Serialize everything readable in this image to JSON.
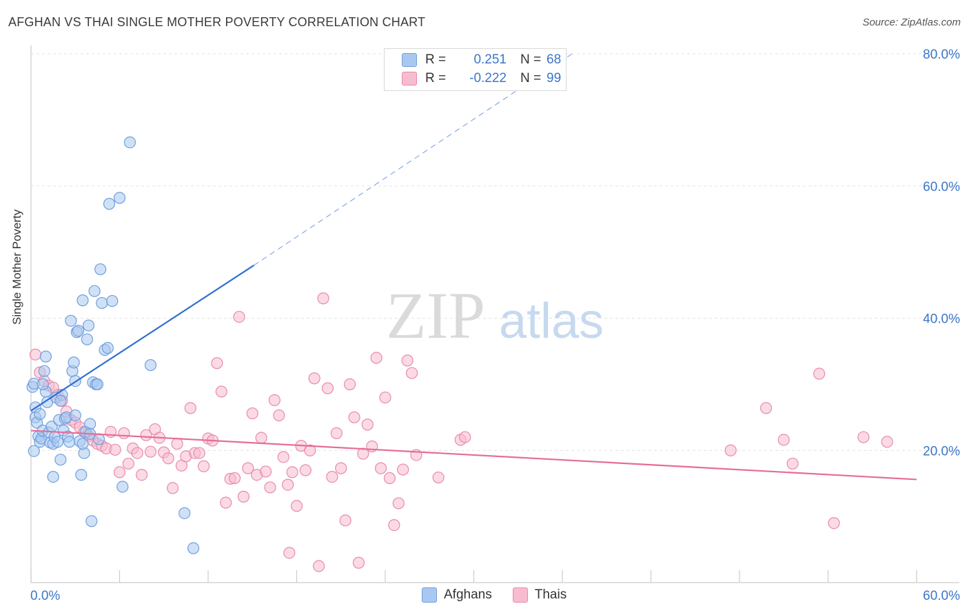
{
  "header": {
    "title": "AFGHAN VS THAI SINGLE MOTHER POVERTY CORRELATION CHART",
    "source": "Source: ZipAtlas.com"
  },
  "watermark": {
    "zip": "ZIP",
    "atlas": "atlas"
  },
  "legend": {
    "rows": [
      {
        "series": "Afghans",
        "r_label": "R =",
        "r_value": "0.251",
        "n_label": "N =",
        "n_value": "68",
        "color": "#a9c8f0",
        "border": "#6f9fdc"
      },
      {
        "series": "Thais",
        "r_label": "R =",
        "r_value": "-0.222",
        "n_label": "N =",
        "n_value": "99",
        "color": "#f7bcd0",
        "border": "#e88aab"
      }
    ],
    "bottom": [
      {
        "label": "Afghans",
        "color": "#a9c8f0",
        "border": "#6f9fdc"
      },
      {
        "label": "Thais",
        "color": "#f7bcd0",
        "border": "#e88aab"
      }
    ]
  },
  "chart_data": {
    "type": "scatter",
    "title": "AFGHAN VS THAI SINGLE MOTHER POVERTY CORRELATION CHART",
    "xlabel": "",
    "ylabel": "Single Mother Poverty",
    "xlim": [
      0,
      60
    ],
    "ylim": [
      0,
      80
    ],
    "x_tick_labels": [
      "0.0%",
      "60.0%"
    ],
    "y_tick_labels": [
      "20.0%",
      "40.0%",
      "60.0%",
      "80.0%"
    ],
    "y_ticks": [
      20,
      40,
      60,
      80
    ],
    "grid": true,
    "series": [
      {
        "name": "Afghans",
        "color": "#6f9fdc",
        "fill": "#a9c8f0",
        "points": [
          [
            0.1,
            29.6
          ],
          [
            0.2,
            30.1
          ],
          [
            0.3,
            26.5
          ],
          [
            0.3,
            25.0
          ],
          [
            0.4,
            24.2
          ],
          [
            0.5,
            22.1
          ],
          [
            0.6,
            21.3
          ],
          [
            0.7,
            21.8
          ],
          [
            0.8,
            23.0
          ],
          [
            0.9,
            32.0
          ],
          [
            1.0,
            34.2
          ],
          [
            1.0,
            28.9
          ],
          [
            1.1,
            27.3
          ],
          [
            1.2,
            22.7
          ],
          [
            1.3,
            21.2
          ],
          [
            1.4,
            23.6
          ],
          [
            1.5,
            21.0
          ],
          [
            1.6,
            22.0
          ],
          [
            1.7,
            28.0
          ],
          [
            1.8,
            21.3
          ],
          [
            1.9,
            24.6
          ],
          [
            2.0,
            18.6
          ],
          [
            2.1,
            28.4
          ],
          [
            2.2,
            23.0
          ],
          [
            2.3,
            24.8
          ],
          [
            2.4,
            25.0
          ],
          [
            2.5,
            22.1
          ],
          [
            2.6,
            21.3
          ],
          [
            2.7,
            39.6
          ],
          [
            2.8,
            32.0
          ],
          [
            2.9,
            33.3
          ],
          [
            3.0,
            30.5
          ],
          [
            3.1,
            37.9
          ],
          [
            3.2,
            38.1
          ],
          [
            3.3,
            21.4
          ],
          [
            3.4,
            16.3
          ],
          [
            3.5,
            42.7
          ],
          [
            3.6,
            19.6
          ],
          [
            3.7,
            22.8
          ],
          [
            3.8,
            36.8
          ],
          [
            3.9,
            38.9
          ],
          [
            4.0,
            24.0
          ],
          [
            4.1,
            9.3
          ],
          [
            4.2,
            30.3
          ],
          [
            4.3,
            44.1
          ],
          [
            4.4,
            30.0
          ],
          [
            4.5,
            30.0
          ],
          [
            4.6,
            21.7
          ],
          [
            4.7,
            47.4
          ],
          [
            4.8,
            42.3
          ],
          [
            5.0,
            35.2
          ],
          [
            5.2,
            35.5
          ],
          [
            5.3,
            57.3
          ],
          [
            5.5,
            42.6
          ],
          [
            6.0,
            58.2
          ],
          [
            6.2,
            14.5
          ],
          [
            6.7,
            66.6
          ],
          [
            8.1,
            32.9
          ],
          [
            10.4,
            10.5
          ],
          [
            11.0,
            5.2
          ],
          [
            0.2,
            19.9
          ],
          [
            0.8,
            30.0
          ],
          [
            1.5,
            16.0
          ],
          [
            2.0,
            27.5
          ],
          [
            3.0,
            25.3
          ],
          [
            3.5,
            21.0
          ],
          [
            0.6,
            25.5
          ],
          [
            4.0,
            22.5
          ]
        ]
      },
      {
        "name": "Thais",
        "color": "#e88aab",
        "fill": "#f7bcd0",
        "points": [
          [
            0.3,
            34.5
          ],
          [
            0.6,
            31.8
          ],
          [
            0.9,
            30.5
          ],
          [
            1.2,
            29.8
          ],
          [
            1.5,
            29.5
          ],
          [
            1.8,
            28.4
          ],
          [
            2.1,
            27.5
          ],
          [
            2.4,
            25.9
          ],
          [
            2.7,
            24.6
          ],
          [
            3.0,
            24.2
          ],
          [
            3.3,
            23.5
          ],
          [
            3.6,
            22.8
          ],
          [
            3.9,
            22.2
          ],
          [
            4.2,
            21.5
          ],
          [
            4.5,
            21.0
          ],
          [
            4.8,
            20.7
          ],
          [
            5.1,
            20.3
          ],
          [
            5.4,
            22.8
          ],
          [
            5.7,
            20.1
          ],
          [
            6.0,
            16.7
          ],
          [
            6.3,
            22.6
          ],
          [
            6.6,
            18.0
          ],
          [
            6.9,
            20.3
          ],
          [
            7.2,
            19.6
          ],
          [
            7.5,
            16.3
          ],
          [
            7.8,
            22.3
          ],
          [
            8.1,
            19.8
          ],
          [
            8.4,
            23.2
          ],
          [
            8.7,
            21.9
          ],
          [
            9.0,
            19.7
          ],
          [
            9.3,
            18.8
          ],
          [
            9.6,
            14.3
          ],
          [
            9.9,
            21.0
          ],
          [
            10.2,
            17.7
          ],
          [
            10.5,
            19.1
          ],
          [
            10.8,
            26.4
          ],
          [
            11.1,
            19.6
          ],
          [
            11.4,
            19.6
          ],
          [
            11.7,
            17.6
          ],
          [
            12.0,
            21.8
          ],
          [
            12.3,
            21.5
          ],
          [
            12.6,
            33.2
          ],
          [
            12.9,
            28.9
          ],
          [
            13.2,
            12.1
          ],
          [
            13.5,
            15.7
          ],
          [
            13.8,
            15.8
          ],
          [
            14.1,
            40.2
          ],
          [
            14.4,
            13.0
          ],
          [
            14.7,
            17.3
          ],
          [
            15.0,
            25.6
          ],
          [
            15.3,
            16.3
          ],
          [
            15.6,
            21.9
          ],
          [
            15.9,
            16.8
          ],
          [
            16.2,
            14.4
          ],
          [
            16.5,
            27.6
          ],
          [
            16.8,
            25.3
          ],
          [
            17.1,
            19.0
          ],
          [
            17.4,
            14.8
          ],
          [
            17.7,
            16.7
          ],
          [
            18.0,
            11.6
          ],
          [
            18.3,
            20.7
          ],
          [
            18.6,
            17.0
          ],
          [
            18.9,
            20.0
          ],
          [
            19.2,
            30.9
          ],
          [
            19.5,
            2.5
          ],
          [
            19.8,
            43.0
          ],
          [
            20.1,
            29.4
          ],
          [
            20.4,
            16.0
          ],
          [
            20.7,
            22.6
          ],
          [
            21.0,
            17.3
          ],
          [
            21.3,
            9.4
          ],
          [
            21.6,
            30.0
          ],
          [
            21.9,
            25.0
          ],
          [
            22.2,
            3.0
          ],
          [
            22.5,
            19.5
          ],
          [
            22.8,
            23.9
          ],
          [
            23.1,
            20.6
          ],
          [
            23.4,
            34.0
          ],
          [
            23.7,
            17.3
          ],
          [
            24.0,
            28.0
          ],
          [
            24.3,
            15.8
          ],
          [
            24.6,
            8.7
          ],
          [
            24.9,
            12.0
          ],
          [
            25.2,
            17.1
          ],
          [
            25.5,
            33.6
          ],
          [
            25.8,
            31.7
          ],
          [
            26.1,
            19.3
          ],
          [
            27.6,
            15.9
          ],
          [
            29.1,
            21.6
          ],
          [
            29.4,
            22.0
          ],
          [
            47.4,
            20.0
          ],
          [
            49.8,
            26.4
          ],
          [
            51.0,
            21.6
          ],
          [
            51.6,
            18.0
          ],
          [
            53.4,
            31.6
          ],
          [
            54.4,
            9.0
          ],
          [
            56.4,
            22.0
          ],
          [
            58.0,
            21.3
          ],
          [
            17.5,
            4.5
          ]
        ]
      }
    ],
    "trend_lines": [
      {
        "series": "Afghans",
        "x": [
          0,
          15.1
        ],
        "y": [
          26.0,
          48.0
        ],
        "style": "solid"
      },
      {
        "series": "Afghans",
        "x": [
          15.1,
          36.8
        ],
        "y": [
          48.0,
          80.2
        ],
        "style": "dashed"
      },
      {
        "series": "Thais",
        "x": [
          0,
          60
        ],
        "y": [
          23.0,
          15.6
        ],
        "style": "solid"
      }
    ]
  }
}
